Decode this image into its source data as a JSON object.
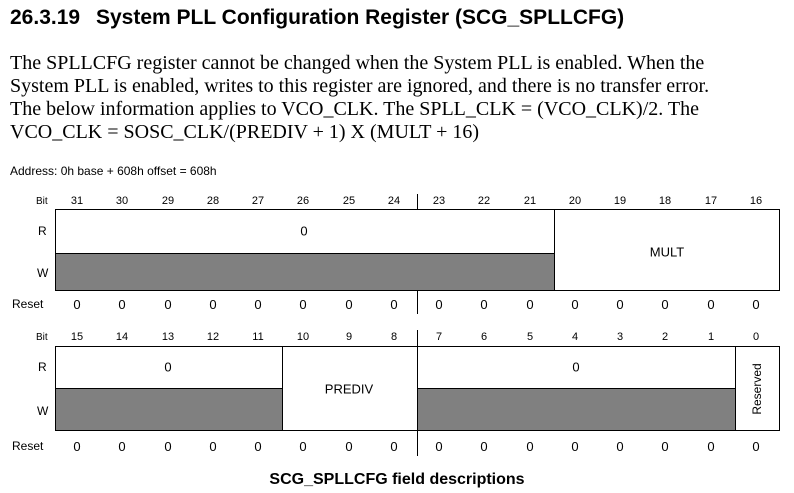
{
  "section": {
    "number": "26.3.19",
    "title": "System PLL Configuration Register (SCG_SPLLCFG)"
  },
  "description_lines": [
    "The SPLLCFG register cannot be changed when the System PLL is enabled. When the",
    "System PLL is enabled, writes to this register are ignored, and there is no transfer error.",
    "The below information applies to VCO_CLK. The SPLL_CLK = (VCO_CLK)/2. The",
    "VCO_CLK = SOSC_CLK/(PREDIV + 1) X (MULT + 16)"
  ],
  "address_line": "Address: 0h base + 608h offset = 608h",
  "labels": {
    "bit": "Bit",
    "read": "R",
    "write": "W",
    "reset": "Reset"
  },
  "upper": {
    "bits": [
      "31",
      "30",
      "29",
      "28",
      "27",
      "26",
      "25",
      "24",
      "23",
      "22",
      "21",
      "20",
      "19",
      "18",
      "17",
      "16"
    ],
    "resets": [
      "0",
      "0",
      "0",
      "0",
      "0",
      "0",
      "0",
      "0",
      "0",
      "0",
      "0",
      "0",
      "0",
      "0",
      "0",
      "0"
    ],
    "fields": [
      {
        "name": "reserved_31_21",
        "label": "0",
        "type": "ro"
      },
      {
        "name": "mult",
        "label": "MULT",
        "type": "rw"
      }
    ]
  },
  "lower": {
    "bits": [
      "15",
      "14",
      "13",
      "12",
      "11",
      "10",
      "9",
      "8",
      "7",
      "6",
      "5",
      "4",
      "3",
      "2",
      "1",
      "0"
    ],
    "resets": [
      "0",
      "0",
      "0",
      "0",
      "0",
      "0",
      "0",
      "0",
      "0",
      "0",
      "0",
      "0",
      "0",
      "0",
      "0",
      "0"
    ],
    "fields": [
      {
        "name": "reserved_15_11",
        "label": "0",
        "type": "ro"
      },
      {
        "name": "prediv",
        "label": "PREDIV",
        "type": "rw"
      },
      {
        "name": "reserved_7_1",
        "label": "0",
        "type": "ro"
      },
      {
        "name": "reserved_0",
        "label": "Reserved",
        "type": "rw-vertical"
      }
    ]
  },
  "caption": "SCG_SPLLCFG field descriptions"
}
